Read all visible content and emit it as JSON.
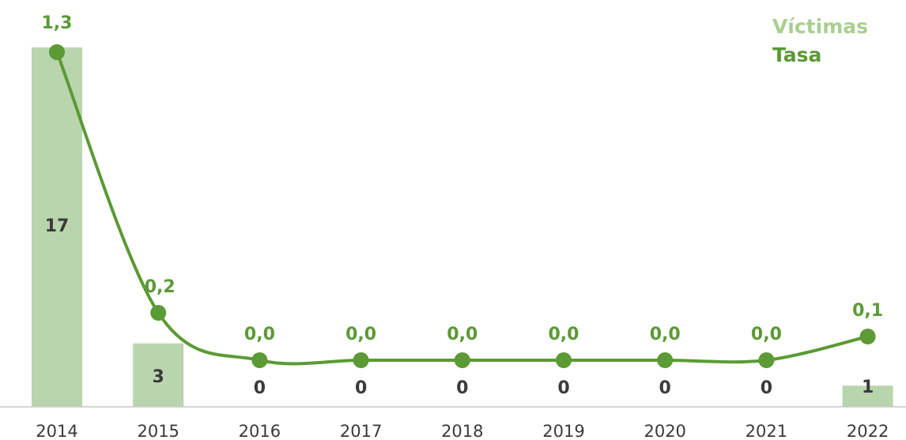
{
  "chart_data": {
    "type": "bar",
    "categories": [
      "2014",
      "2015",
      "2016",
      "2017",
      "2018",
      "2019",
      "2020",
      "2021",
      "2022"
    ],
    "series": [
      {
        "name": "Víctimas",
        "type": "bar",
        "values": [
          17,
          3,
          0,
          0,
          0,
          0,
          0,
          0,
          1
        ],
        "labels": [
          "17",
          "3",
          "0",
          "0",
          "0",
          "0",
          "0",
          "0",
          "1"
        ],
        "color": "#b9d5ad"
      },
      {
        "name": "Tasa",
        "type": "line",
        "values": [
          1.3,
          0.2,
          0.0,
          0.0,
          0.0,
          0.0,
          0.0,
          0.0,
          0.1
        ],
        "labels": [
          "1,3",
          "0,2",
          "0,0",
          "0,0",
          "0,0",
          "0,0",
          "0,0",
          "0,0",
          "0,1"
        ],
        "color": "#5b9a34"
      }
    ],
    "legend_position": "top-right",
    "grid": false,
    "bar_label_color": "#3a3a3a",
    "legend_colors": {
      "Víctimas": "#a9cf8e",
      "Tasa": "#5b9a34"
    },
    "axis_color": "#c8c8c8"
  }
}
